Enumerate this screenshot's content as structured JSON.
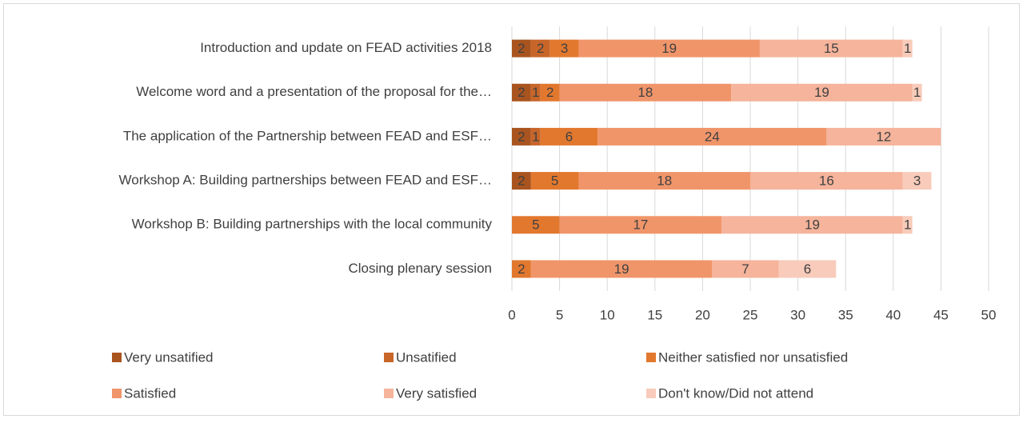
{
  "chart_data": {
    "type": "stacked_barh",
    "categories": [
      "Introduction and update on FEAD activities 2018",
      "Welcome word and a presentation of the proposal for the…",
      "The application of the Partnership between FEAD and ESF…",
      "Workshop A: Building partnerships between FEAD and ESF…",
      "Workshop B: Building partnerships with the local community",
      "Closing plenary session"
    ],
    "series": [
      {
        "name": "Very unsatified",
        "color": "#a9541f",
        "values": [
          2,
          2,
          2,
          2,
          null,
          null
        ]
      },
      {
        "name": "Unsatified",
        "color": "#c8662a",
        "values": [
          2,
          1,
          1,
          null,
          null,
          null
        ]
      },
      {
        "name": "Neither satisfied nor unsatisfied",
        "color": "#e2782e",
        "values": [
          3,
          2,
          6,
          5,
          5,
          2
        ]
      },
      {
        "name": "Satisfied",
        "color": "#f0956a",
        "values": [
          19,
          18,
          24,
          18,
          17,
          19
        ]
      },
      {
        "name": "Very satisfied",
        "color": "#f5b49b",
        "values": [
          15,
          19,
          12,
          16,
          19,
          7
        ]
      },
      {
        "name": "Don't know/Did not attend",
        "color": "#f8cbba",
        "values": [
          1,
          1,
          null,
          3,
          1,
          6
        ]
      }
    ],
    "xlim": [
      0,
      50
    ],
    "xticks": [
      0,
      5,
      10,
      15,
      20,
      25,
      30,
      35,
      40,
      45,
      50
    ],
    "grid": true,
    "legend": "bottom"
  }
}
